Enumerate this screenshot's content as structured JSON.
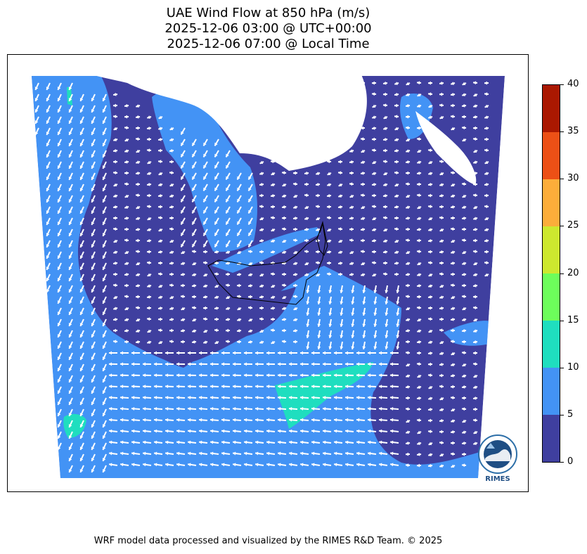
{
  "title_lines": [
    "UAE Wind Flow at 850 hPa (m/s)",
    "2025-12-06 03:00 @ UTC+00:00",
    "2025-12-06 07:00 @ Local Time"
  ],
  "colorbar": {
    "ticks": [
      "0",
      "5",
      "10",
      "15",
      "20",
      "25",
      "30",
      "35",
      "40"
    ],
    "bins": [
      {
        "from": 0,
        "to": 5,
        "color": "#3f3f9f"
      },
      {
        "from": 5,
        "to": 10,
        "color": "#4393f5"
      },
      {
        "from": 10,
        "to": 15,
        "color": "#1fdebf"
      },
      {
        "from": 15,
        "to": 20,
        "color": "#6dfd5b"
      },
      {
        "from": 20,
        "to": 25,
        "color": "#cde82f"
      },
      {
        "from": 25,
        "to": 30,
        "color": "#fcad3a"
      },
      {
        "from": 30,
        "to": 35,
        "color": "#ec5016"
      },
      {
        "from": 35,
        "to": 40,
        "color": "#aa1801"
      }
    ]
  },
  "colors": {
    "calm": "#3f3f9f",
    "moderate": "#4393f5",
    "fresh": "#1fdebf",
    "masked": "#ffffff",
    "vectors": "#ffffff",
    "boundaries": "#000000"
  },
  "logo": {
    "text": "RIMES",
    "ring_text": "Regional Integrated Multi-Hazard Early Warning System"
  },
  "credit": "WRF model data processed and visualized by the RIMES R&D Team. © 2025"
}
